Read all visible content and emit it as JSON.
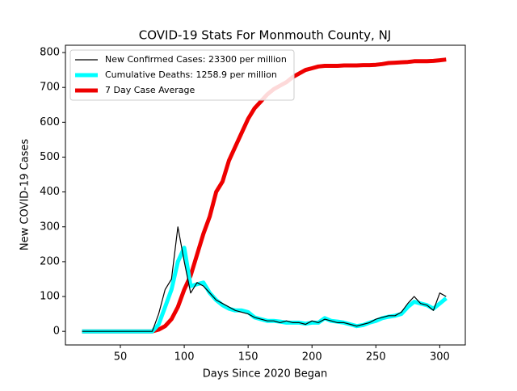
{
  "chart_data": {
    "type": "line",
    "title": "COVID-19 Stats For Monmouth County, NJ",
    "x_label": "Days Since 2020 Began",
    "y_label": "New COVID-19 Cases",
    "x": [
      20,
      25,
      30,
      35,
      40,
      45,
      50,
      55,
      60,
      65,
      70,
      75,
      80,
      85,
      90,
      95,
      100,
      105,
      110,
      115,
      120,
      125,
      130,
      135,
      140,
      145,
      150,
      155,
      160,
      165,
      170,
      175,
      180,
      185,
      190,
      195,
      200,
      205,
      210,
      215,
      220,
      225,
      230,
      235,
      240,
      245,
      250,
      255,
      260,
      265,
      270,
      275,
      280,
      285,
      290,
      295,
      300,
      305
    ],
    "series": [
      {
        "name": "New Confirmed Cases: 23300 per million",
        "color": "#000000",
        "values": [
          0,
          0,
          0,
          0,
          0,
          0,
          0,
          0,
          0,
          0,
          0,
          0,
          50,
          120,
          150,
          300,
          200,
          110,
          140,
          130,
          110,
          90,
          80,
          70,
          60,
          55,
          50,
          40,
          35,
          30,
          30,
          25,
          30,
          25,
          25,
          20,
          30,
          25,
          35,
          30,
          25,
          25,
          20,
          15,
          20,
          25,
          35,
          40,
          45,
          45,
          55,
          80,
          100,
          80,
          75,
          60,
          110,
          100
        ]
      },
      {
        "name": "Cumulative Deaths: 1258.9 per million",
        "color": "#00ffff",
        "values": [
          0,
          0,
          0,
          0,
          0,
          0,
          0,
          0,
          0,
          0,
          0,
          0,
          20,
          70,
          120,
          200,
          240,
          130,
          135,
          140,
          110,
          90,
          75,
          65,
          60,
          60,
          55,
          40,
          35,
          30,
          30,
          28,
          25,
          25,
          25,
          22,
          25,
          25,
          38,
          30,
          28,
          25,
          20,
          15,
          18,
          25,
          30,
          38,
          42,
          45,
          50,
          70,
          85,
          80,
          75,
          65,
          80,
          95
        ]
      },
      {
        "name": "7 Day Case Average",
        "color": "#ee0000",
        "values": [
          0,
          0,
          0,
          0,
          0,
          0,
          0,
          0,
          0,
          0,
          0,
          0,
          5,
          15,
          35,
          70,
          120,
          160,
          220,
          280,
          330,
          400,
          430,
          490,
          530,
          570,
          610,
          640,
          660,
          680,
          695,
          705,
          715,
          730,
          740,
          750,
          755,
          760,
          762,
          762,
          762,
          763,
          763,
          763,
          764,
          764,
          765,
          767,
          770,
          771,
          772,
          773,
          775,
          775,
          775,
          776,
          778,
          780
        ]
      }
    ],
    "xlim": [
      7,
      320
    ],
    "ylim": [
      -39,
      821
    ],
    "xticks": [
      50,
      100,
      150,
      200,
      250,
      300
    ],
    "yticks": [
      0,
      100,
      200,
      300,
      400,
      500,
      600,
      700,
      800
    ],
    "legend": "upper left"
  }
}
